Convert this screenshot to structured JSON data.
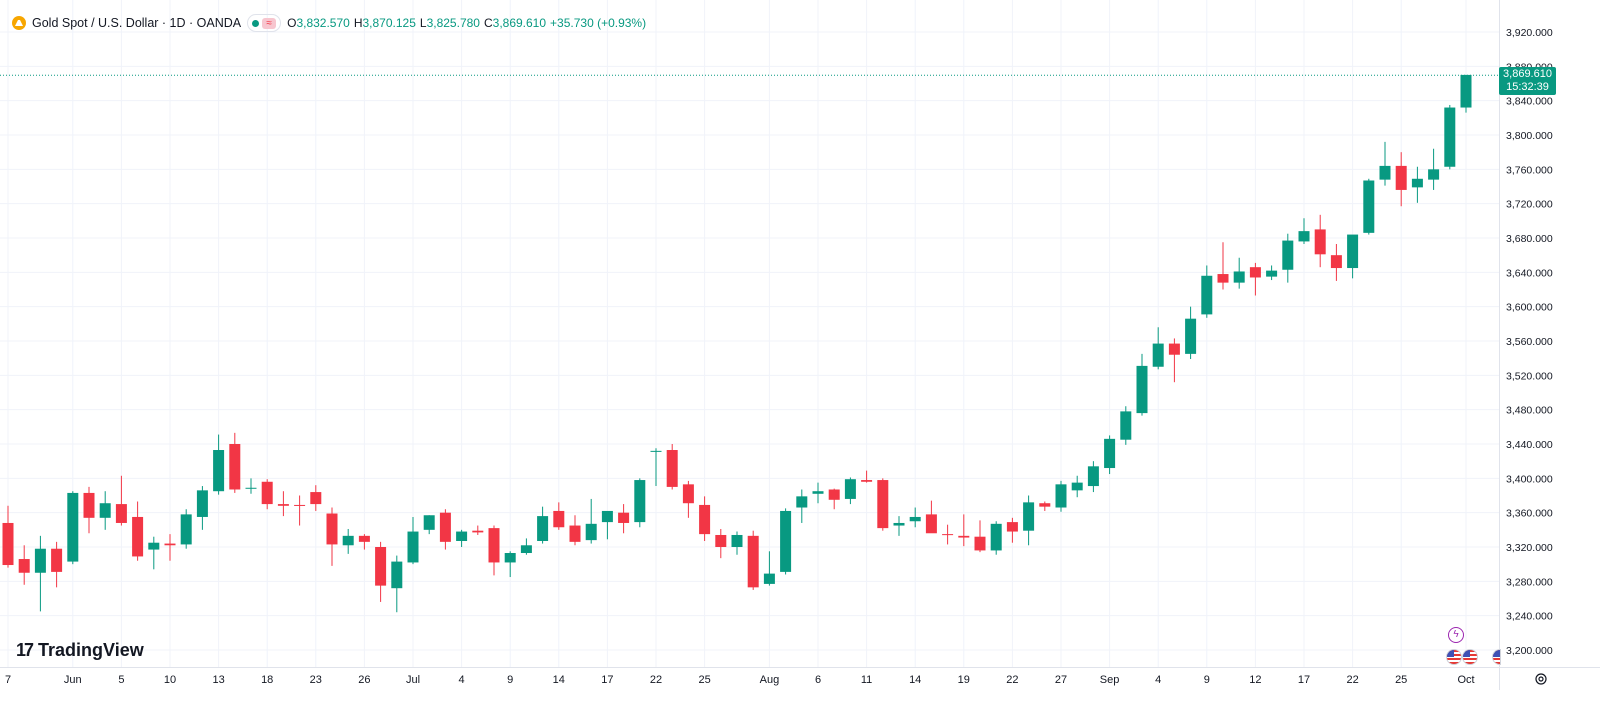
{
  "header": {
    "title": "Gold Spot / U.S. Dollar · 1D · OANDA",
    "open_label": "O",
    "open": "3,832.570",
    "high_label": "H",
    "high": "3,870.125",
    "low_label": "L",
    "low": "3,825.780",
    "close_label": "C",
    "close": "3,869.610",
    "change": "+35.730 (+0.93%)",
    "logo_icon": "gold-coin-icon",
    "status_icon": "market-open-dot-icon"
  },
  "brand": {
    "name": "TradingView",
    "mark": "17"
  },
  "price_badge": {
    "price": "3,869.610",
    "countdown": "15:32:39"
  },
  "colors": {
    "up": "#089981",
    "down": "#f23645",
    "grid": "#f0f3fa",
    "axis_text": "#131722"
  },
  "chart_data": {
    "type": "candlestick",
    "ylim": [
      3180,
      3940
    ],
    "y_ticks": [
      "3,200.000",
      "3,240.000",
      "3,280.000",
      "3,320.000",
      "3,360.000",
      "3,400.000",
      "3,440.000",
      "3,480.000",
      "3,520.000",
      "3,560.000",
      "3,600.000",
      "3,640.000",
      "3,680.000",
      "3,720.000",
      "3,760.000",
      "3,800.000",
      "3,840.000",
      "3,880.000",
      "3,920.000"
    ],
    "x_ticks": [
      "7",
      "Jun",
      "5",
      "10",
      "13",
      "18",
      "23",
      "26",
      "Jul",
      "4",
      "9",
      "14",
      "17",
      "22",
      "25",
      "Aug",
      "6",
      "11",
      "14",
      "19",
      "22",
      "27",
      "Sep",
      "4",
      "9",
      "12",
      "17",
      "22",
      "25",
      "Oct"
    ],
    "current_price": 3869.61,
    "candles": [
      {
        "o": 3348,
        "h": 3368,
        "l": 3296,
        "c": 3299
      },
      {
        "o": 3306,
        "h": 3322,
        "l": 3276,
        "c": 3290
      },
      {
        "o": 3290,
        "h": 3333,
        "l": 3245,
        "c": 3318
      },
      {
        "o": 3318,
        "h": 3326,
        "l": 3273,
        "c": 3291
      },
      {
        "o": 3303,
        "h": 3385,
        "l": 3300,
        "c": 3383
      },
      {
        "o": 3383,
        "h": 3390,
        "l": 3336,
        "c": 3354
      },
      {
        "o": 3354,
        "h": 3385,
        "l": 3340,
        "c": 3371
      },
      {
        "o": 3370,
        "h": 3403,
        "l": 3345,
        "c": 3348
      },
      {
        "o": 3355,
        "h": 3373,
        "l": 3304,
        "c": 3309
      },
      {
        "o": 3317,
        "h": 3332,
        "l": 3294,
        "c": 3325
      },
      {
        "o": 3324,
        "h": 3335,
        "l": 3304,
        "c": 3322
      },
      {
        "o": 3323,
        "h": 3364,
        "l": 3318,
        "c": 3358
      },
      {
        "o": 3355,
        "h": 3391,
        "l": 3340,
        "c": 3386
      },
      {
        "o": 3385,
        "h": 3451,
        "l": 3381,
        "c": 3433
      },
      {
        "o": 3440,
        "h": 3453,
        "l": 3383,
        "c": 3387
      },
      {
        "o": 3388,
        "h": 3400,
        "l": 3382,
        "c": 3389
      },
      {
        "o": 3396,
        "h": 3399,
        "l": 3364,
        "c": 3370
      },
      {
        "o": 3370,
        "h": 3385,
        "l": 3356,
        "c": 3368
      },
      {
        "o": 3369,
        "h": 3380,
        "l": 3345,
        "c": 3368
      },
      {
        "o": 3384,
        "h": 3392,
        "l": 3362,
        "c": 3370
      },
      {
        "o": 3359,
        "h": 3366,
        "l": 3298,
        "c": 3323
      },
      {
        "o": 3322,
        "h": 3341,
        "l": 3312,
        "c": 3333
      },
      {
        "o": 3333,
        "h": 3335,
        "l": 3317,
        "c": 3326
      },
      {
        "o": 3320,
        "h": 3326,
        "l": 3256,
        "c": 3275
      },
      {
        "o": 3272,
        "h": 3310,
        "l": 3244,
        "c": 3303
      },
      {
        "o": 3302,
        "h": 3355,
        "l": 3300,
        "c": 3338
      },
      {
        "o": 3340,
        "h": 3357,
        "l": 3335,
        "c": 3357
      },
      {
        "o": 3360,
        "h": 3364,
        "l": 3317,
        "c": 3326
      },
      {
        "o": 3327,
        "h": 3340,
        "l": 3320,
        "c": 3338
      },
      {
        "o": 3339,
        "h": 3345,
        "l": 3334,
        "c": 3337
      },
      {
        "o": 3342,
        "h": 3345,
        "l": 3287,
        "c": 3302
      },
      {
        "o": 3302,
        "h": 3315,
        "l": 3285,
        "c": 3313
      },
      {
        "o": 3313,
        "h": 3330,
        "l": 3311,
        "c": 3322
      },
      {
        "o": 3327,
        "h": 3367,
        "l": 3324,
        "c": 3356
      },
      {
        "o": 3362,
        "h": 3372,
        "l": 3340,
        "c": 3343
      },
      {
        "o": 3345,
        "h": 3357,
        "l": 3322,
        "c": 3326
      },
      {
        "o": 3328,
        "h": 3376,
        "l": 3324,
        "c": 3347
      },
      {
        "o": 3349,
        "h": 3360,
        "l": 3329,
        "c": 3362
      },
      {
        "o": 3360,
        "h": 3370,
        "l": 3336,
        "c": 3348
      },
      {
        "o": 3349,
        "h": 3400,
        "l": 3343,
        "c": 3398
      },
      {
        "o": 3432,
        "h": 3435,
        "l": 3391,
        "c": 3432
      },
      {
        "o": 3433,
        "h": 3440,
        "l": 3387,
        "c": 3390
      },
      {
        "o": 3393,
        "h": 3397,
        "l": 3354,
        "c": 3371
      },
      {
        "o": 3369,
        "h": 3379,
        "l": 3327,
        "c": 3335
      },
      {
        "o": 3334,
        "h": 3341,
        "l": 3307,
        "c": 3320
      },
      {
        "o": 3320,
        "h": 3338,
        "l": 3311,
        "c": 3334
      },
      {
        "o": 3333,
        "h": 3339,
        "l": 3270,
        "c": 3273
      },
      {
        "o": 3277,
        "h": 3315,
        "l": 3275,
        "c": 3289
      },
      {
        "o": 3291,
        "h": 3365,
        "l": 3288,
        "c": 3362
      },
      {
        "o": 3366,
        "h": 3387,
        "l": 3348,
        "c": 3379
      },
      {
        "o": 3382,
        "h": 3395,
        "l": 3371,
        "c": 3385
      },
      {
        "o": 3387,
        "h": 3388,
        "l": 3364,
        "c": 3375
      },
      {
        "o": 3376,
        "h": 3401,
        "l": 3370,
        "c": 3399
      },
      {
        "o": 3398,
        "h": 3409,
        "l": 3395,
        "c": 3396
      },
      {
        "o": 3398,
        "h": 3400,
        "l": 3339,
        "c": 3342
      },
      {
        "o": 3345,
        "h": 3356,
        "l": 3333,
        "c": 3348
      },
      {
        "o": 3350,
        "h": 3366,
        "l": 3343,
        "c": 3355
      },
      {
        "o": 3358,
        "h": 3374,
        "l": 3338,
        "c": 3336
      },
      {
        "o": 3335,
        "h": 3346,
        "l": 3323,
        "c": 3334
      },
      {
        "o": 3333,
        "h": 3358,
        "l": 3321,
        "c": 3331
      },
      {
        "o": 3332,
        "h": 3351,
        "l": 3314,
        "c": 3316
      },
      {
        "o": 3316,
        "h": 3350,
        "l": 3311,
        "c": 3347
      },
      {
        "o": 3349,
        "h": 3354,
        "l": 3325,
        "c": 3338
      },
      {
        "o": 3339,
        "h": 3380,
        "l": 3322,
        "c": 3372
      },
      {
        "o": 3371,
        "h": 3373,
        "l": 3362,
        "c": 3367
      },
      {
        "o": 3366,
        "h": 3397,
        "l": 3361,
        "c": 3393
      },
      {
        "o": 3386,
        "h": 3403,
        "l": 3378,
        "c": 3395
      },
      {
        "o": 3391,
        "h": 3420,
        "l": 3384,
        "c": 3414
      },
      {
        "o": 3412,
        "h": 3450,
        "l": 3405,
        "c": 3446
      },
      {
        "o": 3445,
        "h": 3484,
        "l": 3439,
        "c": 3478
      },
      {
        "o": 3476,
        "h": 3545,
        "l": 3473,
        "c": 3531
      },
      {
        "o": 3530,
        "h": 3576,
        "l": 3527,
        "c": 3557
      },
      {
        "o": 3557,
        "h": 3563,
        "l": 3512,
        "c": 3544
      },
      {
        "o": 3545,
        "h": 3600,
        "l": 3539,
        "c": 3586
      },
      {
        "o": 3591,
        "h": 3648,
        "l": 3587,
        "c": 3636
      },
      {
        "o": 3638,
        "h": 3675,
        "l": 3620,
        "c": 3628
      },
      {
        "o": 3628,
        "h": 3657,
        "l": 3621,
        "c": 3641
      },
      {
        "o": 3646,
        "h": 3651,
        "l": 3613,
        "c": 3634
      },
      {
        "o": 3635,
        "h": 3648,
        "l": 3631,
        "c": 3642
      },
      {
        "o": 3643,
        "h": 3685,
        "l": 3628,
        "c": 3677
      },
      {
        "o": 3676,
        "h": 3703,
        "l": 3673,
        "c": 3688
      },
      {
        "o": 3690,
        "h": 3707,
        "l": 3646,
        "c": 3661
      },
      {
        "o": 3660,
        "h": 3673,
        "l": 3630,
        "c": 3645
      },
      {
        "o": 3645,
        "h": 3683,
        "l": 3633,
        "c": 3684
      },
      {
        "o": 3686,
        "h": 3749,
        "l": 3684,
        "c": 3747
      },
      {
        "o": 3748,
        "h": 3792,
        "l": 3741,
        "c": 3764
      },
      {
        "o": 3764,
        "h": 3780,
        "l": 3717,
        "c": 3736
      },
      {
        "o": 3739,
        "h": 3763,
        "l": 3721,
        "c": 3749
      },
      {
        "o": 3748,
        "h": 3784,
        "l": 3736,
        "c": 3760
      },
      {
        "o": 3763,
        "h": 3835,
        "l": 3760,
        "c": 3832
      },
      {
        "o": 3832,
        "h": 3870,
        "l": 3826,
        "c": 3870
      }
    ]
  },
  "events": {
    "bolt_icon": "lightning-event-icon",
    "flag_icon": "us-flag-icon"
  },
  "settings_icon": "chart-settings-icon"
}
